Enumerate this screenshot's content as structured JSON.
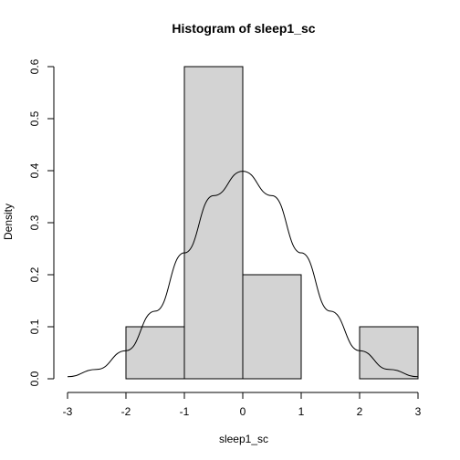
{
  "chart_data": {
    "type": "bar",
    "title": "Histogram of sleep1_sc",
    "xlabel": "sleep1_sc",
    "ylabel": "Density",
    "xlim": [
      -3,
      3
    ],
    "ylim": [
      0,
      0.6
    ],
    "xticks": [
      "-3",
      "-2",
      "-1",
      "0",
      "1",
      "2",
      "3"
    ],
    "yticks": [
      "0.0",
      "0.1",
      "0.2",
      "0.3",
      "0.4",
      "0.5",
      "0.6"
    ],
    "bins": [
      {
        "from": -2,
        "to": -1,
        "density": 0.1
      },
      {
        "from": -1,
        "to": 0,
        "density": 0.6
      },
      {
        "from": 0,
        "to": 1,
        "density": 0.2
      },
      {
        "from": 1,
        "to": 2,
        "density": 0.0
      },
      {
        "from": 2,
        "to": 3,
        "density": 0.1
      }
    ],
    "curve": {
      "type": "line",
      "x": [
        -3.0,
        -2.5,
        -2.0,
        -1.5,
        -1.0,
        -0.5,
        0.0,
        0.5,
        1.0,
        1.5,
        2.0,
        2.5,
        3.0
      ],
      "y": [
        0.004,
        0.018,
        0.054,
        0.13,
        0.242,
        0.352,
        0.399,
        0.352,
        0.242,
        0.13,
        0.054,
        0.018,
        0.004
      ]
    },
    "bar_fill": "#d3d3d3",
    "grid": false,
    "legend": "none"
  }
}
